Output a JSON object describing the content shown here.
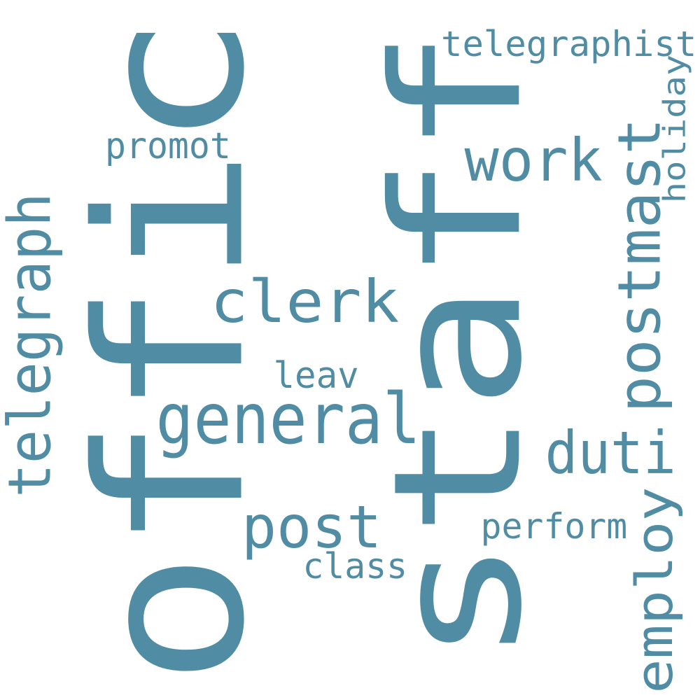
{
  "colors": {
    "word": "#508DA4",
    "background": "#ffffff"
  },
  "words": [
    {
      "text": "offic",
      "vertical": true
    },
    {
      "text": "staff",
      "vertical": true
    },
    {
      "text": "telegraphist",
      "vertical": false
    },
    {
      "text": "holiday",
      "vertical": true
    },
    {
      "text": "promot",
      "vertical": false
    },
    {
      "text": "work",
      "vertical": false
    },
    {
      "text": "postmast",
      "vertical": true
    },
    {
      "text": "telegraph",
      "vertical": true
    },
    {
      "text": "clerk",
      "vertical": false
    },
    {
      "text": "leav",
      "vertical": false
    },
    {
      "text": "general",
      "vertical": false
    },
    {
      "text": "duti",
      "vertical": false
    },
    {
      "text": "post",
      "vertical": false
    },
    {
      "text": "perform",
      "vertical": false
    },
    {
      "text": "class",
      "vertical": false
    },
    {
      "text": "employ",
      "vertical": true
    }
  ]
}
